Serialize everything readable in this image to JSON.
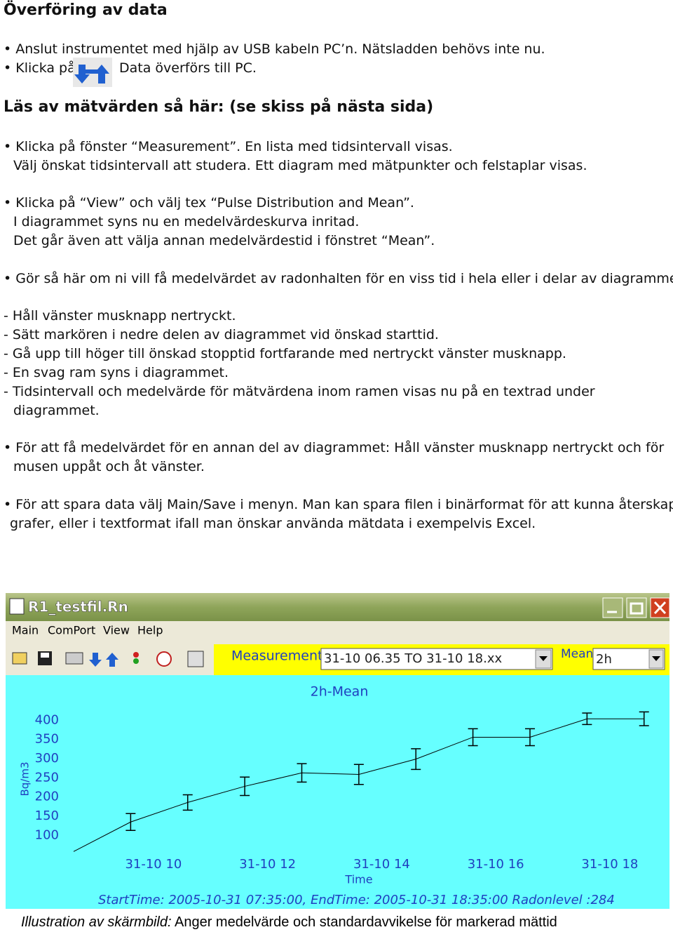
{
  "heading": "Överföring av data",
  "lines": [
    "• Anslut instrumentet med hjälp av USB kabeln PC’n. Nätsladden behövs inte nu.",
    "• Klicka på",
    "Data överförs till PC."
  ],
  "subheading": "Läs av mätvärden så här: (se skiss på nästa sida)",
  "body": [
    "• Klicka på fönster “Measurement”. En lista med tidsintervall visas.",
    "Välj önskat tidsintervall att studera. Ett diagram med mätpunkter och felstaplar visas.",
    "• Klicka på “View” och välj tex “Pulse Distribution and Mean”.",
    "I diagrammet syns nu en medelvärdeskurva inritad.",
    "Det går även att välja annan medelvärdestid i fönstret “Mean”.",
    "• Gör så här om ni vill få medelvärdet av radonhalten för en viss tid i hela eller i delar av diagrammet.",
    "- Håll vänster musknapp nertryckt.",
    "- Sätt markören i nedre delen av diagrammet vid önskad starttid.",
    "- Gå upp till höger till önskad stopptid fortfarande med nertryckt vänster musknapp.",
    "- En svag ram syns i diagrammet.",
    "- Tidsintervall och medelvärde för mätvärdena inom ramen visas nu på en textrad under",
    "diagrammet.",
    "• För att få medelvärdet för en annan del av diagrammet: Håll vänster musknapp nertryckt och för",
    "musen uppåt och åt vänster.",
    "• För att spara data välj Main/Save i menyn. Man kan spara filen i binärformat för att kunna återskapa",
    "grafer, eller i textformat ifall man önskar använda mätdata i exempelvis Excel."
  ],
  "window": {
    "title": "R1_testfil.Rn",
    "menu": [
      "Main",
      "ComPort",
      "View",
      "Help"
    ],
    "measurement_label": "Measurement",
    "measurement_value": "31-10 06.35 TO 31-10 18.xx",
    "mean_label": "Mean",
    "mean_value": "2h"
  },
  "chart_data": {
    "type": "line",
    "title": "2h-Mean",
    "ylabel": "Bq/m3",
    "xlabel": "Time",
    "footer": "StartTime: 2005-10-31 07:35:00, EndTime: 2005-10-31 18:35:00 Radonlevel :284",
    "x": [
      8.6,
      9.6,
      10.6,
      11.6,
      12.6,
      13.6,
      14.6,
      15.6,
      16.6,
      17.6,
      18.6
    ],
    "series": [
      {
        "color": "#000000",
        "values": [
          58,
          135,
          186,
          228,
          263,
          259,
          299,
          356,
          356,
          404,
          404
        ],
        "errors": [
          null,
          22,
          20,
          24,
          24,
          26,
          27,
          22,
          22,
          15,
          18
        ]
      }
    ],
    "xlim": [
      8.6,
      18.8
    ],
    "xticks": [
      {
        "value": 10,
        "label": "31-10 10"
      },
      {
        "value": 12,
        "label": "31-10 12"
      },
      {
        "value": 14,
        "label": "31-10 14"
      },
      {
        "value": 16,
        "label": "31-10 16"
      },
      {
        "value": 18,
        "label": "31-10 18"
      }
    ],
    "ylim": [
      55,
      430
    ],
    "yticks": [
      100,
      150,
      200,
      250,
      300,
      350,
      400
    ]
  },
  "caption": {
    "label": "Illustration av skärmbild:",
    "text": "Anger medelvärde och standardavvikelse för markerad mättid"
  }
}
